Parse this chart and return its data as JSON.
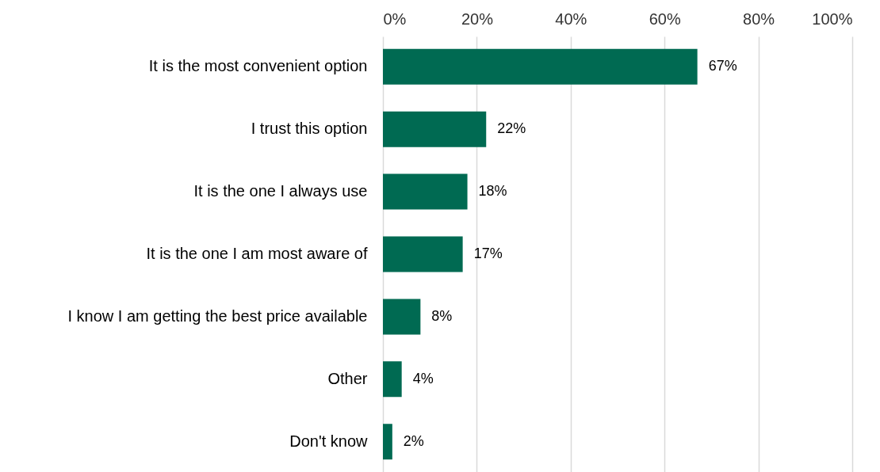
{
  "chart_data": {
    "type": "bar",
    "orientation": "horizontal",
    "categories": [
      "It is the most convenient option",
      "I trust this option",
      "It is the one I always use",
      "It is the one I am most aware of",
      "I know I am getting the best price available",
      "Other",
      "Don't know"
    ],
    "values": [
      67,
      22,
      18,
      17,
      8,
      4,
      2
    ],
    "value_labels": [
      "67%",
      "22%",
      "18%",
      "17%",
      "8%",
      "4%",
      "2%"
    ],
    "color": "#006a52",
    "xlim": [
      0,
      100
    ],
    "xticks": [
      {
        "value": 0,
        "label": "0%"
      },
      {
        "value": 20,
        "label": "20%"
      },
      {
        "value": 40,
        "label": "40%"
      },
      {
        "value": 60,
        "label": "60%"
      },
      {
        "value": 80,
        "label": "80%"
      },
      {
        "value": 100,
        "label": "100%"
      }
    ],
    "grid": "x"
  }
}
